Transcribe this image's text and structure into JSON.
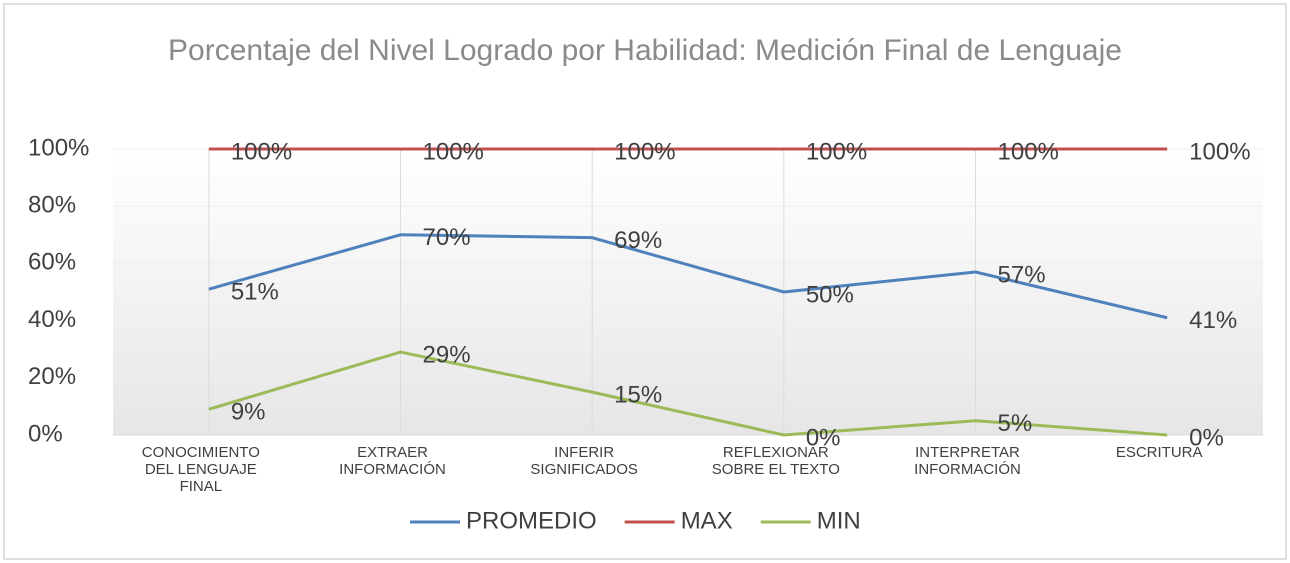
{
  "chart_data": {
    "type": "line",
    "title": "Porcentaje del Nivel Logrado por Habilidad: Medición Final de Lenguaje",
    "categories": [
      "CONOCIMIENTO DEL LENGUAJE FINAL",
      "EXTRAER INFORMACIÓN",
      "INFERIR SIGNIFICADOS",
      "REFLEXIONAR SOBRE EL TEXTO",
      "INTERPRETAR INFORMACIÓN",
      "ESCRITURA"
    ],
    "series": [
      {
        "name": "PROMEDIO",
        "color": "#4f81bd",
        "values": [
          51,
          70,
          69,
          50,
          57,
          41
        ],
        "value_labels": [
          "51%",
          "70%",
          "69%",
          "50%",
          "57%",
          "41%"
        ]
      },
      {
        "name": "MAX",
        "color": "#c0504d",
        "values": [
          100,
          100,
          100,
          100,
          100,
          100
        ],
        "value_labels": [
          "100%",
          "100%",
          "100%",
          "100%",
          "100%",
          "100%"
        ]
      },
      {
        "name": "MIN",
        "color": "#9bbb59",
        "values": [
          9,
          29,
          15,
          0,
          5,
          0
        ],
        "value_labels": [
          "9%",
          "29%",
          "15%",
          "0%",
          "5%",
          "0%"
        ]
      }
    ],
    "ylim": [
      0,
      100
    ],
    "yticks": [
      {
        "value": 0,
        "label": "0%"
      },
      {
        "value": 20,
        "label": "20%"
      },
      {
        "value": 40,
        "label": "40%"
      },
      {
        "value": 60,
        "label": "60%"
      },
      {
        "value": 80,
        "label": "80%"
      },
      {
        "value": 100,
        "label": "100%"
      }
    ],
    "legend": "bottom"
  }
}
